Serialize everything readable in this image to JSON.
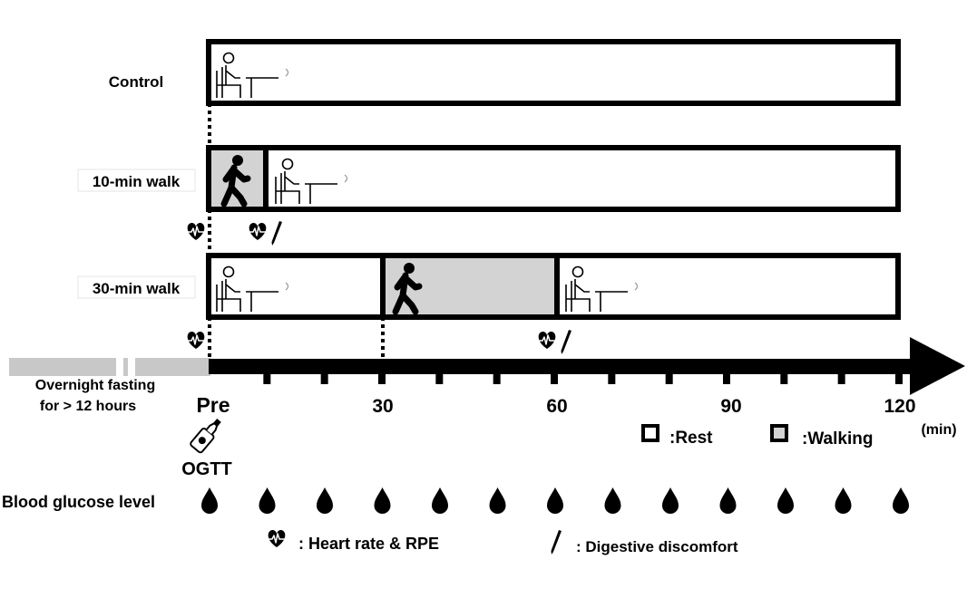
{
  "conditions": [
    {
      "label": "Control"
    },
    {
      "label": "10-min walk"
    },
    {
      "label": "30-min walk"
    }
  ],
  "timeline": {
    "start_label": "Pre",
    "ticks": [
      "30",
      "60",
      "90",
      "120"
    ],
    "unit": "(min)",
    "fasting_line1": "Overnight fasting",
    "fasting_line2": "for  > 12 hours",
    "ogtt_label": "OGTT"
  },
  "legend": {
    "rest_label": ":Rest",
    "walking_label": ":Walking",
    "heart_label": ": Heart rate & RPE",
    "pen_label": ": Digestive discomfort"
  },
  "blood_glucose": {
    "label": "Blood glucose level",
    "sample_count": 13
  },
  "colors": {
    "walking_fill": "#d3d3d3",
    "fasting_bar": "#c8c8c8",
    "ink": "#000000"
  },
  "icons": {
    "rest": "seated-person-icon",
    "walk": "walking-person-icon",
    "heart": "heart-rate-icon",
    "pen": "pen-icon",
    "drop": "blood-drop-icon",
    "bottle": "glucose-bottle-icon"
  }
}
